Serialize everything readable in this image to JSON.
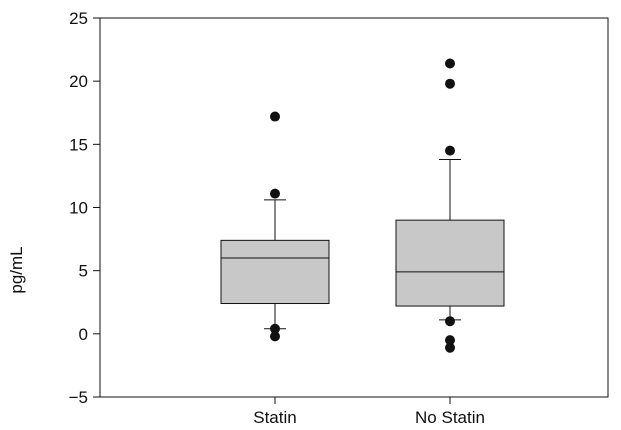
{
  "chart_data": {
    "type": "boxplot",
    "title": "",
    "xlabel": "",
    "ylabel": "pg/mL",
    "ylim": [
      -5,
      25
    ],
    "yticks": [
      -5,
      0,
      5,
      10,
      15,
      20,
      25
    ],
    "grid": false,
    "categories": [
      "Statin",
      "No Statin"
    ],
    "boxes": [
      {
        "label": "Statin",
        "whisker_low": 0.4,
        "q1": 2.4,
        "median": 6.0,
        "q3": 7.4,
        "whisker_high": 10.6,
        "outliers": [
          17.2,
          11.1,
          0.4,
          -0.2
        ]
      },
      {
        "label": "No Statin",
        "whisker_low": 1.1,
        "q1": 2.2,
        "median": 4.9,
        "q3": 9.0,
        "whisker_high": 13.8,
        "outliers": [
          21.4,
          19.8,
          14.5,
          1.0,
          -0.5,
          -1.1
        ]
      }
    ],
    "colors": {
      "box_fill": "#c8c8c8",
      "line": "#111111",
      "outlier": "#111111"
    }
  }
}
